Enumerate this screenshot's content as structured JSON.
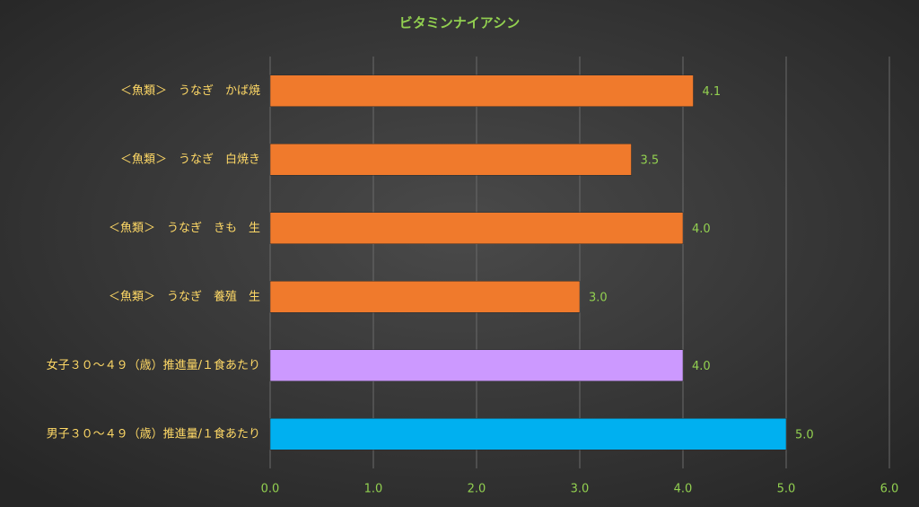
{
  "chart_data": {
    "type": "hbar",
    "title": "ビタミンナイアシン",
    "categories": [
      "＜魚類＞　うなぎ　かば焼",
      "＜魚類＞　うなぎ　白焼き",
      "＜魚類＞　うなぎ　きも　生",
      "＜魚類＞　うなぎ　養殖　生",
      "女子３０～４９（歳）推進量/１食あたり",
      "男子３０～４９（歳）推進量/１食あたり"
    ],
    "values": [
      4.1,
      3.5,
      4,
      3,
      4,
      5
    ],
    "value_labels": [
      "4.1",
      "3.5",
      "4.0",
      "3.0",
      "4.0",
      "5.0"
    ],
    "colors": [
      "#f07a2c",
      "#f07a2c",
      "#f07a2c",
      "#f07a2c",
      "#cc99ff",
      "#00b0f0"
    ],
    "xlim": [
      0,
      6
    ],
    "xticks": [
      {
        "value": 0,
        "label": "0.0"
      },
      {
        "value": 1,
        "label": "1.0"
      },
      {
        "value": 2,
        "label": "2.0"
      },
      {
        "value": 3,
        "label": "3.0"
      },
      {
        "value": 4,
        "label": "4.0"
      },
      {
        "value": 5,
        "label": "5.0"
      },
      {
        "value": 6,
        "label": "6.0"
      }
    ],
    "grid": true
  }
}
